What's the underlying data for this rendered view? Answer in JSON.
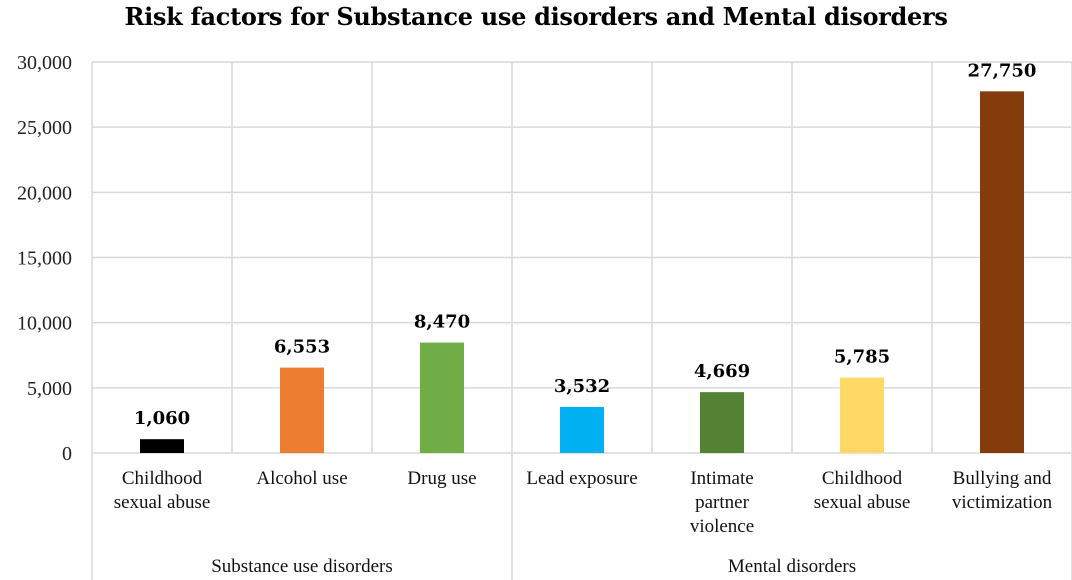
{
  "chart_data": {
    "type": "bar",
    "title": "Risk factors for Substance use disorders and Mental disorders",
    "xlabel": "",
    "ylabel": "",
    "ylim": [
      0,
      30000
    ],
    "yticks": [
      0,
      5000,
      10000,
      15000,
      20000,
      25000,
      30000
    ],
    "ytick_labels": [
      "0",
      "5,000",
      "10,000",
      "15,000",
      "20,000",
      "25,000",
      "30,000"
    ],
    "grid": true,
    "legend": "none",
    "groups": [
      {
        "name": "Substance use disorders",
        "start": 0,
        "count": 3
      },
      {
        "name": "Mental disorders",
        "start": 3,
        "count": 4
      }
    ],
    "categories": [
      [
        "Childhood",
        "sexual abuse"
      ],
      [
        "Alcohol use"
      ],
      [
        "Drug use"
      ],
      [
        "Lead exposure"
      ],
      [
        "Intimate",
        "partner",
        "violence"
      ],
      [
        "Childhood",
        "sexual abuse"
      ],
      [
        "Bullying and",
        "victimization"
      ]
    ],
    "values": [
      1060,
      6553,
      8470,
      3532,
      4669,
      5785,
      27750
    ],
    "data_labels": [
      "1,060",
      "6,553",
      "8,470",
      "3,532",
      "4,669",
      "5,785",
      "27,750"
    ],
    "colors": [
      "#000000",
      "#ED7D31",
      "#70AD47",
      "#00B0F0",
      "#548235",
      "#FFD966",
      "#843C0C"
    ]
  }
}
